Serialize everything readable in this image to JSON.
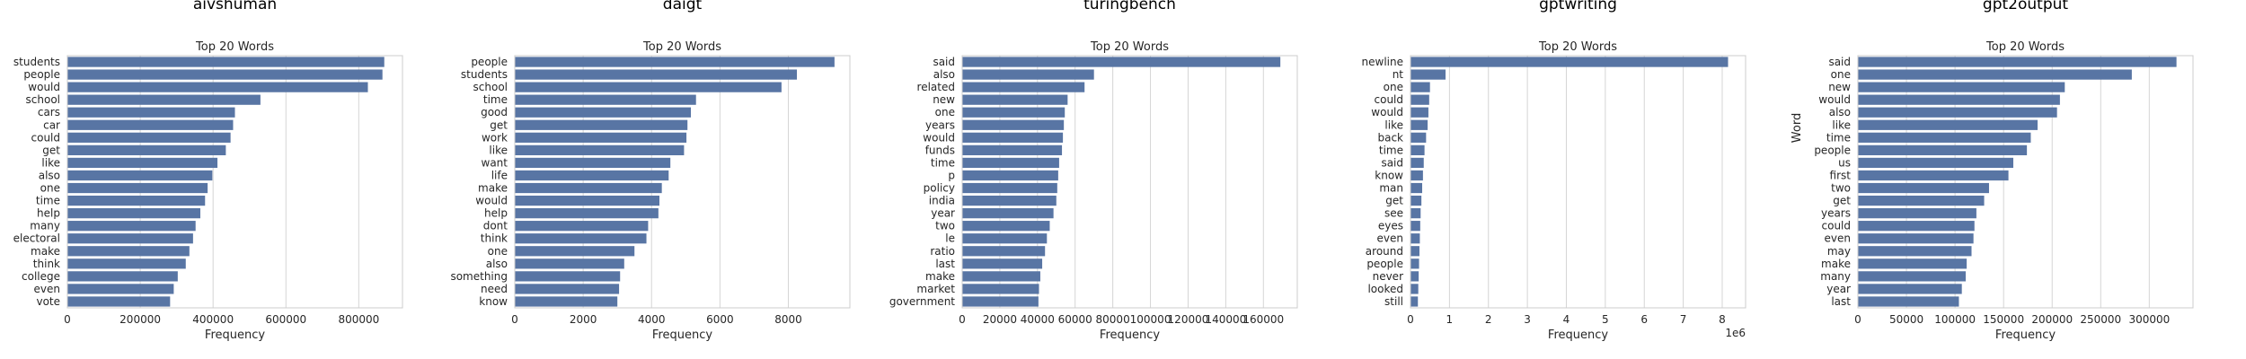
{
  "colors": {
    "bar": "#5875a4",
    "grid": "#d5d5d5",
    "frame": "#cccccc",
    "text": "#262626"
  },
  "chart_data": [
    {
      "type": "bar",
      "orientation": "horizontal",
      "suptitle": "aivshuman",
      "title": "Top 20 Words",
      "xlabel": "Frequency",
      "xlim": [
        0,
        920000
      ],
      "xticks": [
        "0",
        "200000",
        "400000",
        "600000",
        "800000"
      ],
      "xtick_values": [
        0,
        200000,
        400000,
        600000,
        800000
      ],
      "categories": [
        "students",
        "people",
        "would",
        "school",
        "cars",
        "car",
        "could",
        "get",
        "like",
        "also",
        "one",
        "time",
        "help",
        "many",
        "electoral",
        "make",
        "think",
        "college",
        "even",
        "vote"
      ],
      "values": [
        870000,
        865000,
        825000,
        530000,
        460000,
        455000,
        448000,
        435000,
        412000,
        398000,
        385000,
        378000,
        365000,
        352000,
        345000,
        335000,
        325000,
        303000,
        292000,
        282000
      ]
    },
    {
      "type": "bar",
      "orientation": "horizontal",
      "suptitle": "daigt",
      "title": "Top 20 Words",
      "xlabel": "Frequency",
      "xlim": [
        0,
        9800
      ],
      "xticks": [
        "0",
        "2000",
        "4000",
        "6000",
        "8000"
      ],
      "xtick_values": [
        0,
        2000,
        4000,
        6000,
        8000
      ],
      "categories": [
        "people",
        "students",
        "school",
        "time",
        "good",
        "get",
        "work",
        "like",
        "want",
        "life",
        "make",
        "would",
        "help",
        "dont",
        "think",
        "one",
        "also",
        "something",
        "need",
        "know"
      ],
      "values": [
        9350,
        8250,
        7800,
        5300,
        5150,
        5050,
        5020,
        4950,
        4550,
        4500,
        4300,
        4230,
        4200,
        3900,
        3850,
        3500,
        3200,
        3080,
        3050,
        3000
      ]
    },
    {
      "type": "bar",
      "orientation": "horizontal",
      "suptitle": "turingbench",
      "title": "Top 20 Words",
      "xlabel": "Frequency",
      "xlim": [
        0,
        178000
      ],
      "xticks": [
        "0",
        "20000",
        "40000",
        "60000",
        "80000",
        "100000",
        "120000",
        "140000",
        "160000"
      ],
      "xtick_values": [
        0,
        20000,
        40000,
        60000,
        80000,
        100000,
        120000,
        140000,
        160000
      ],
      "categories": [
        "said",
        "also",
        "related",
        "new",
        "one",
        "years",
        "would",
        "funds",
        "time",
        "p",
        "policy",
        "india",
        "year",
        "two",
        "le",
        "ratio",
        "last",
        "make",
        "market",
        "government"
      ],
      "values": [
        169000,
        70000,
        65000,
        56000,
        54500,
        54000,
        53500,
        53000,
        51500,
        51000,
        50500,
        50000,
        48500,
        46500,
        45000,
        44000,
        42500,
        41500,
        40800,
        40500
      ]
    },
    {
      "type": "bar",
      "orientation": "horizontal",
      "suptitle": "gptwriting",
      "title": "Top 20 Words",
      "xlabel": "Frequency",
      "xlim": [
        0,
        8.6
      ],
      "xticks": [
        "0",
        "1",
        "2",
        "3",
        "4",
        "5",
        "6",
        "7",
        "8"
      ],
      "xtick_values": [
        0,
        1,
        2,
        3,
        4,
        5,
        6,
        7,
        8
      ],
      "offset_label": "1e6",
      "categories": [
        "newline",
        "nt",
        "one",
        "could",
        "would",
        "like",
        "back",
        "time",
        "said",
        "know",
        "man",
        "get",
        "see",
        "eyes",
        "even",
        "around",
        "people",
        "never",
        "looked",
        "still"
      ],
      "values": [
        8.15,
        0.9,
        0.5,
        0.48,
        0.46,
        0.44,
        0.4,
        0.36,
        0.34,
        0.32,
        0.3,
        0.28,
        0.26,
        0.25,
        0.24,
        0.23,
        0.22,
        0.21,
        0.2,
        0.19
      ]
    },
    {
      "type": "bar",
      "orientation": "horizontal",
      "suptitle": "gpt2output",
      "title": "Top 20 Words",
      "xlabel": "Frequency",
      "xlim": [
        0,
        345000
      ],
      "xticks": [
        "0",
        "50000",
        "100000",
        "150000",
        "200000",
        "250000",
        "300000"
      ],
      "xtick_values": [
        0,
        50000,
        100000,
        150000,
        200000,
        250000,
        300000
      ],
      "ylabel": "Word",
      "categories": [
        "said",
        "one",
        "new",
        "would",
        "also",
        "like",
        "time",
        "people",
        "us",
        "first",
        "two",
        "get",
        "years",
        "could",
        "even",
        "may",
        "make",
        "many",
        "year",
        "last"
      ],
      "values": [
        328000,
        282000,
        213000,
        208000,
        205000,
        185000,
        178000,
        174000,
        160000,
        155000,
        135000,
        130000,
        122000,
        120000,
        119000,
        117000,
        112000,
        111000,
        107000,
        104000
      ]
    }
  ]
}
